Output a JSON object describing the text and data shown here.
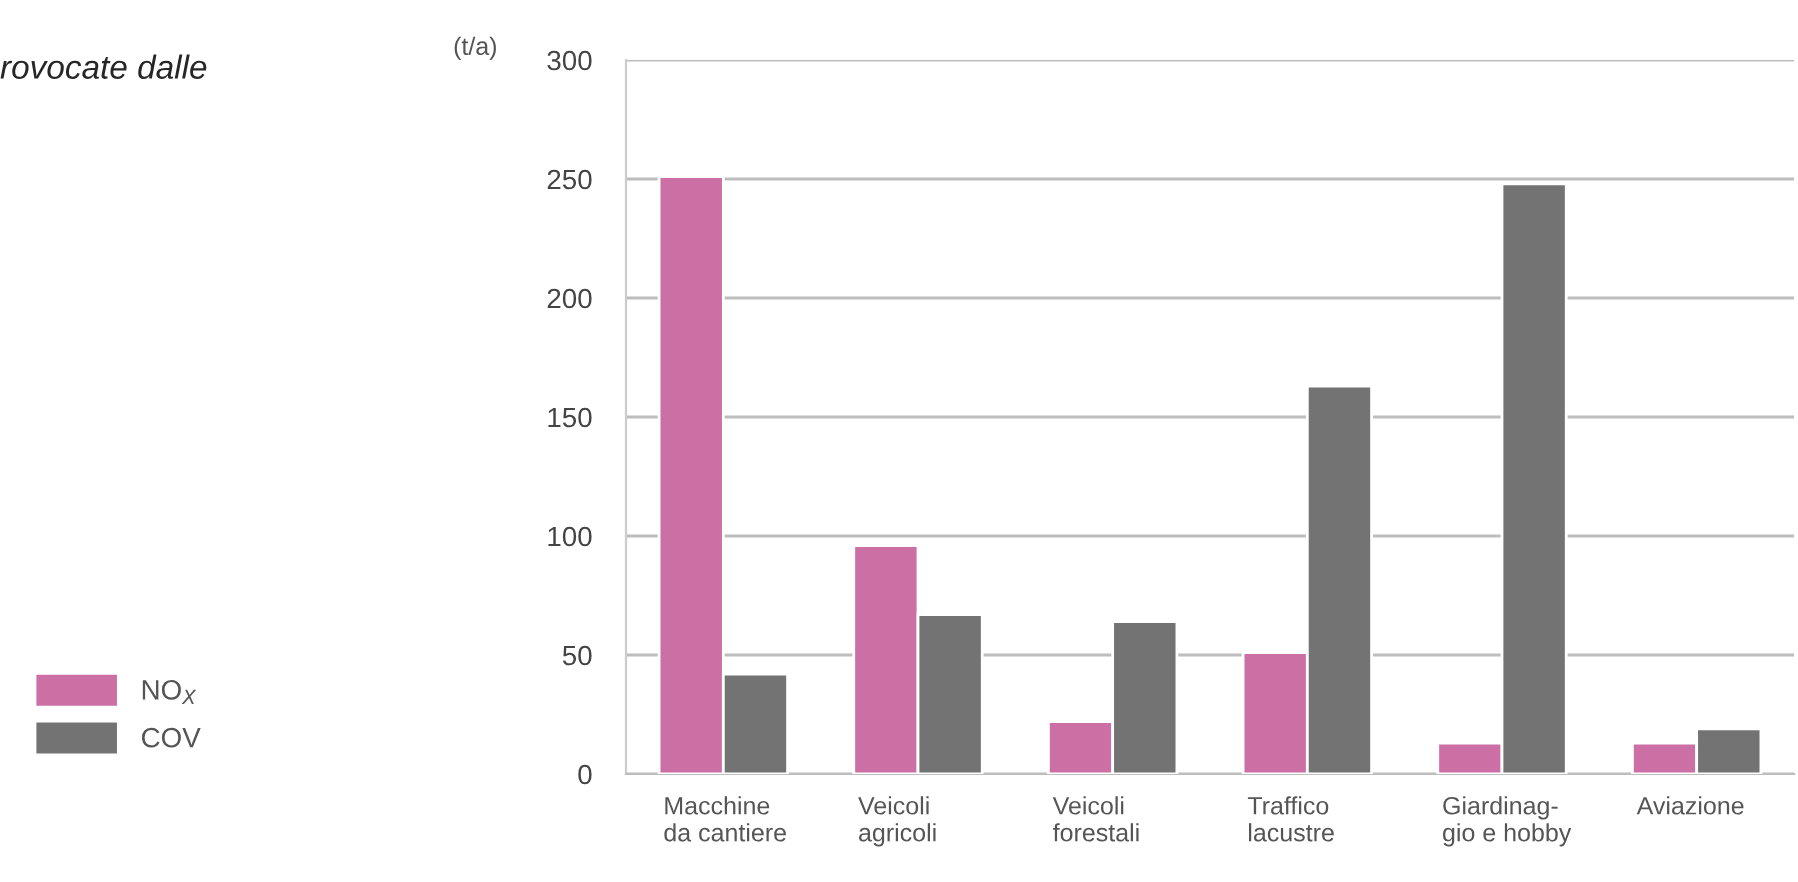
{
  "chart_data": {
    "type": "bar",
    "title": "rovocate dalle",
    "ylabel": "(t/a)",
    "categories": [
      "Macchine\nda cantiere",
      "Veicoli\nagricoli",
      "Veicoli\nforestali",
      "Traffico\nlacustre",
      "Giardinag-\ngio e hobby",
      "Aviazione"
    ],
    "series": [
      {
        "name": "NO$_{X}$",
        "color": "#cc6fa5",
        "values": [
          251,
          96,
          22,
          51,
          13,
          13
        ]
      },
      {
        "name": "COV",
        "color": "#737373",
        "values": [
          42,
          67,
          64,
          163,
          248,
          19
        ]
      }
    ],
    "ylim": [
      0,
      300
    ],
    "yticks": [
      0,
      50,
      100,
      150,
      200,
      250,
      300
    ],
    "grid": "y",
    "legend": "left"
  }
}
